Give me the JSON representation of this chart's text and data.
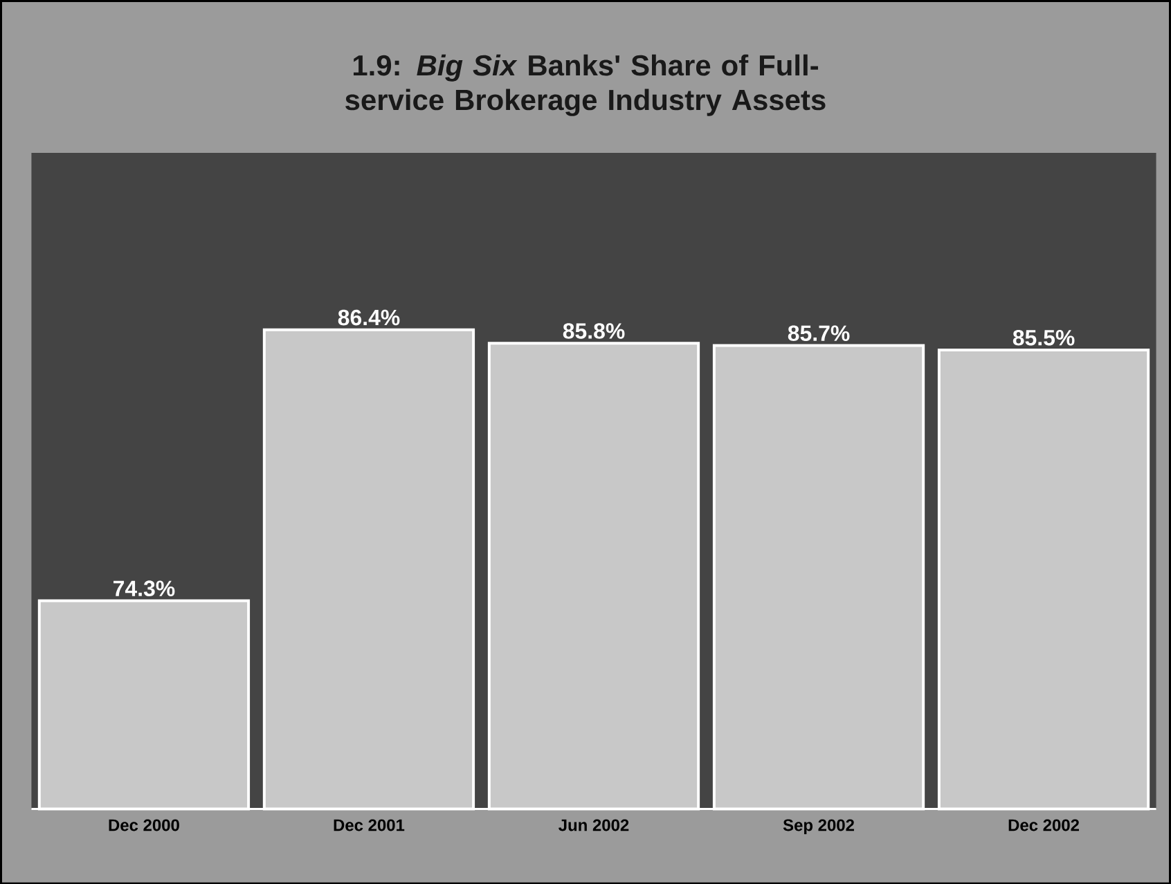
{
  "chart_data": {
    "type": "bar",
    "title": "1.9: *Big Six* Banks' Share of Full-service Brokerage Industry Assets",
    "categories": [
      "Dec 2000",
      "Dec 2001",
      "Jun 2002",
      "Sep 2002",
      "Dec 2002"
    ],
    "values": [
      74.3,
      86.4,
      85.8,
      85.7,
      85.5
    ],
    "value_labels": [
      "74.3%",
      "86.4%",
      "85.8%",
      "85.7%",
      "85.5%"
    ],
    "color": "#c8c8c8",
    "ylim": [
      65,
      94.3
    ],
    "tick_labels": "x"
  }
}
